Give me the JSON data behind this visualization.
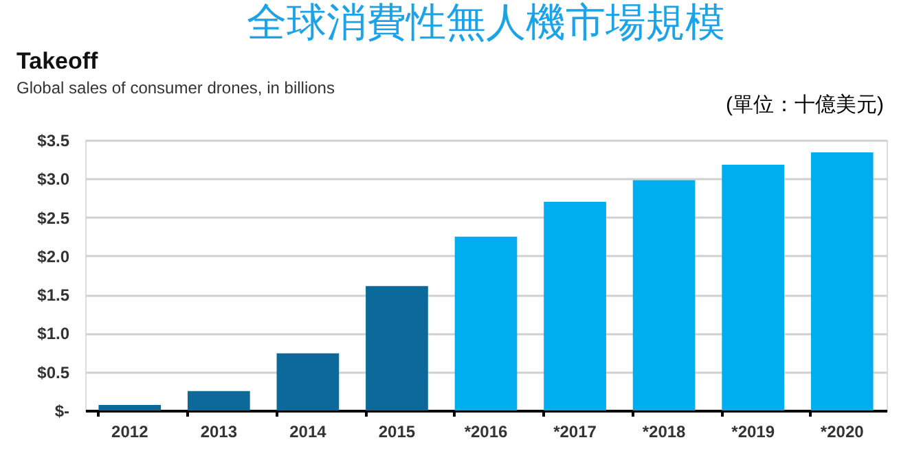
{
  "chart_data": {
    "type": "bar",
    "title": "全球消費性無人機市場規模",
    "subtitle": "Takeoff",
    "annotations": [
      "Global sales of consumer drones, in billions",
      "(單位：十億美元)"
    ],
    "categories": [
      "2012",
      "2013",
      "2014",
      "2015",
      "*2016",
      "*2017",
      "*2018",
      "*2019",
      "*2020"
    ],
    "values": [
      0.07,
      0.25,
      0.74,
      1.61,
      2.25,
      2.7,
      2.98,
      3.18,
      3.34
    ],
    "colors": [
      "#0b6a9a",
      "#0b6a9a",
      "#0b6a9a",
      "#0b6a9a",
      "#00aeef",
      "#00aeef",
      "#00aeef",
      "#00aeef",
      "#00aeef"
    ],
    "ylim": [
      0,
      3.5
    ],
    "yticks": [
      {
        "value": 0,
        "label": "$-"
      },
      {
        "value": 0.5,
        "label": "$0.5"
      },
      {
        "value": 1,
        "label": "$1.0"
      },
      {
        "value": 1.5,
        "label": "$1.5"
      },
      {
        "value": 2,
        "label": "$2.0"
      },
      {
        "value": 2.5,
        "label": "$2.5"
      },
      {
        "value": 3,
        "label": "$3.0"
      },
      {
        "value": 3.5,
        "label": "$3.5"
      }
    ],
    "grid": "y"
  }
}
